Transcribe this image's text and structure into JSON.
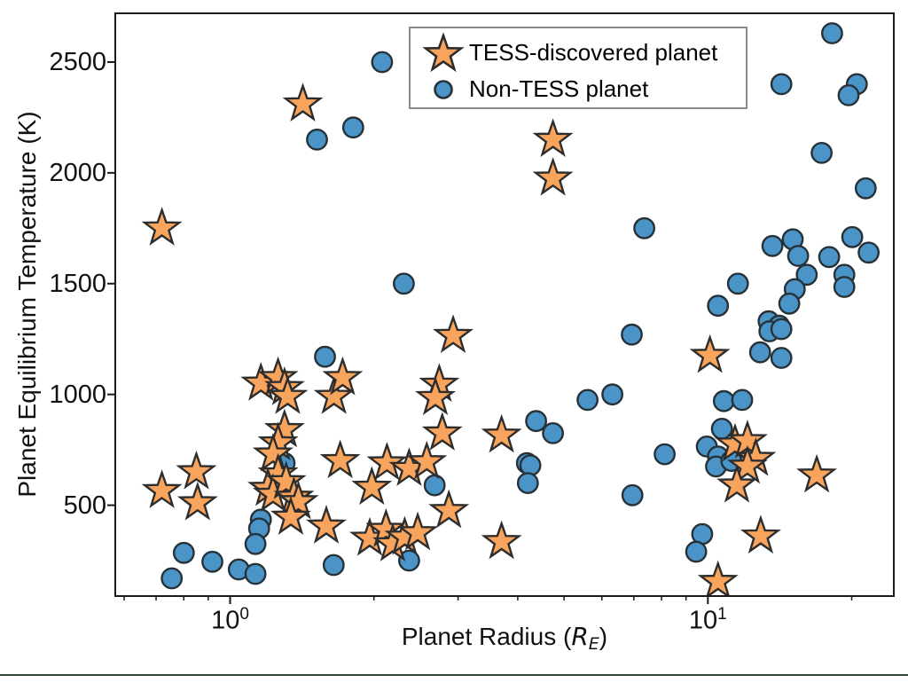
{
  "axes": {
    "ylabel": "Planet Equilibrium Temperature (K)",
    "xlabel": {
      "prefix": "Planet Radius (",
      "symbol": "R",
      "subscript": "E",
      "suffix": ")"
    },
    "yticks": [
      {
        "value": 500,
        "label": "500"
      },
      {
        "value": 1000,
        "label": "1000"
      },
      {
        "value": 1500,
        "label": "1500"
      },
      {
        "value": 2000,
        "label": "2000"
      },
      {
        "value": 2500,
        "label": "2500"
      }
    ],
    "xticks_major": [
      {
        "value": 1,
        "base": "10",
        "exp": "0"
      },
      {
        "value": 10,
        "base": "10",
        "exp": "1"
      }
    ],
    "xticks_minor": [
      0.6,
      0.7,
      0.8,
      0.9,
      2,
      3,
      4,
      5,
      6,
      7,
      8,
      9,
      20
    ]
  },
  "legend": {
    "items": [
      {
        "label": "TESS-discovered planet",
        "marker": "star"
      },
      {
        "label": "Non-TESS planet",
        "marker": "circle"
      }
    ]
  },
  "style": {
    "star_fill": "#F8A45C",
    "star_edge": "#2D2D2D",
    "circle_fill": "#4A94C8",
    "circle_edge": "#263238",
    "spine_color": "#1A1A1A",
    "legend_border": "#8A8A8A",
    "bottom_rule_color": "#2F4636"
  },
  "chart_data": {
    "type": "scatter",
    "title": "",
    "xlabel": "Planet Radius (R_E)",
    "ylabel": "Planet Equilibrium Temperature (K)",
    "xscale": "log",
    "yscale": "linear",
    "xlim": [
      0.575,
      24.5
    ],
    "ylim": [
      90,
      2720
    ],
    "xticks": [
      1,
      10
    ],
    "yticks": [
      500,
      1000,
      1500,
      2000,
      2500
    ],
    "grid": false,
    "legend_position": "upper center",
    "series": [
      {
        "name": "Non-TESS planet",
        "marker": "circle",
        "color": "#4A94C8",
        "points": [
          [
            1.52,
            2150
          ],
          [
            1.81,
            2205
          ],
          [
            2.08,
            2500
          ],
          [
            18.2,
            2630
          ],
          [
            14.25,
            2400
          ],
          [
            20.5,
            2400
          ],
          [
            19.7,
            2350
          ],
          [
            17.3,
            2090
          ],
          [
            21.4,
            1930
          ],
          [
            7.36,
            1750
          ],
          [
            13.65,
            1670
          ],
          [
            15.05,
            1700
          ],
          [
            20.05,
            1710
          ],
          [
            15.45,
            1625
          ],
          [
            17.94,
            1620
          ],
          [
            21.7,
            1640
          ],
          [
            16.1,
            1540
          ],
          [
            19.3,
            1540
          ],
          [
            19.3,
            1485
          ],
          [
            11.56,
            1500
          ],
          [
            15.2,
            1475
          ],
          [
            10.5,
            1400
          ],
          [
            14.8,
            1410
          ],
          [
            13.4,
            1330
          ],
          [
            14.1,
            1310
          ],
          [
            13.45,
            1285
          ],
          [
            14.25,
            1295
          ],
          [
            12.86,
            1190
          ],
          [
            14.25,
            1165
          ],
          [
            2.31,
            1500
          ],
          [
            1.58,
            1170
          ],
          [
            6.93,
            1270
          ],
          [
            5.6,
            975
          ],
          [
            6.31,
            1000
          ],
          [
            4.37,
            880
          ],
          [
            4.74,
            825
          ],
          [
            4.18,
            690
          ],
          [
            4.25,
            680
          ],
          [
            4.2,
            600
          ],
          [
            6.95,
            545
          ],
          [
            8.12,
            730
          ],
          [
            9.95,
            765
          ],
          [
            10.7,
            845
          ],
          [
            10.8,
            970
          ],
          [
            11.8,
            975
          ],
          [
            10.5,
            720
          ],
          [
            10.4,
            675
          ],
          [
            11.2,
            700
          ],
          [
            9.73,
            370
          ],
          [
            9.45,
            290
          ],
          [
            1.3,
            690
          ],
          [
            2.68,
            590
          ],
          [
            1.16,
            435
          ],
          [
            1.15,
            395
          ],
          [
            1.13,
            325
          ],
          [
            0.755,
            170
          ],
          [
            0.8,
            285
          ],
          [
            0.918,
            245
          ],
          [
            1.043,
            210
          ],
          [
            1.13,
            190
          ],
          [
            1.647,
            230
          ],
          [
            2.37,
            250
          ]
        ]
      },
      {
        "name": "TESS-discovered planet",
        "marker": "star",
        "color": "#F8A45C",
        "points": [
          [
            0.72,
            1750
          ],
          [
            1.42,
            2310
          ],
          [
            4.74,
            2150
          ],
          [
            4.74,
            1975
          ],
          [
            2.93,
            1265
          ],
          [
            0.72,
            565
          ],
          [
            0.85,
            650
          ],
          [
            0.855,
            510
          ],
          [
            1.16,
            1050
          ],
          [
            1.26,
            1075
          ],
          [
            1.3,
            1030
          ],
          [
            1.32,
            990
          ],
          [
            1.3,
            840
          ],
          [
            1.26,
            780
          ],
          [
            1.23,
            730
          ],
          [
            1.26,
            640
          ],
          [
            1.2,
            575
          ],
          [
            1.23,
            548
          ],
          [
            1.31,
            605
          ],
          [
            1.36,
            535
          ],
          [
            1.39,
            515
          ],
          [
            1.34,
            445
          ],
          [
            1.59,
            405
          ],
          [
            1.65,
            990
          ],
          [
            1.72,
            1075
          ],
          [
            1.7,
            700
          ],
          [
            1.98,
            580
          ],
          [
            1.96,
            350
          ],
          [
            2.12,
            390
          ],
          [
            2.19,
            325
          ],
          [
            2.32,
            355
          ],
          [
            2.47,
            375
          ],
          [
            2.13,
            690
          ],
          [
            2.37,
            665
          ],
          [
            2.58,
            695
          ],
          [
            2.87,
            475
          ],
          [
            2.74,
            1045
          ],
          [
            2.69,
            985
          ],
          [
            2.78,
            825
          ],
          [
            3.7,
            815
          ],
          [
            3.7,
            335
          ],
          [
            10.1,
            1175
          ],
          [
            11.4,
            775
          ],
          [
            12.1,
            790
          ],
          [
            12.6,
            710
          ],
          [
            12.1,
            675
          ],
          [
            11.5,
            590
          ],
          [
            16.9,
            635
          ],
          [
            12.9,
            360
          ],
          [
            10.5,
            155
          ]
        ]
      }
    ]
  }
}
